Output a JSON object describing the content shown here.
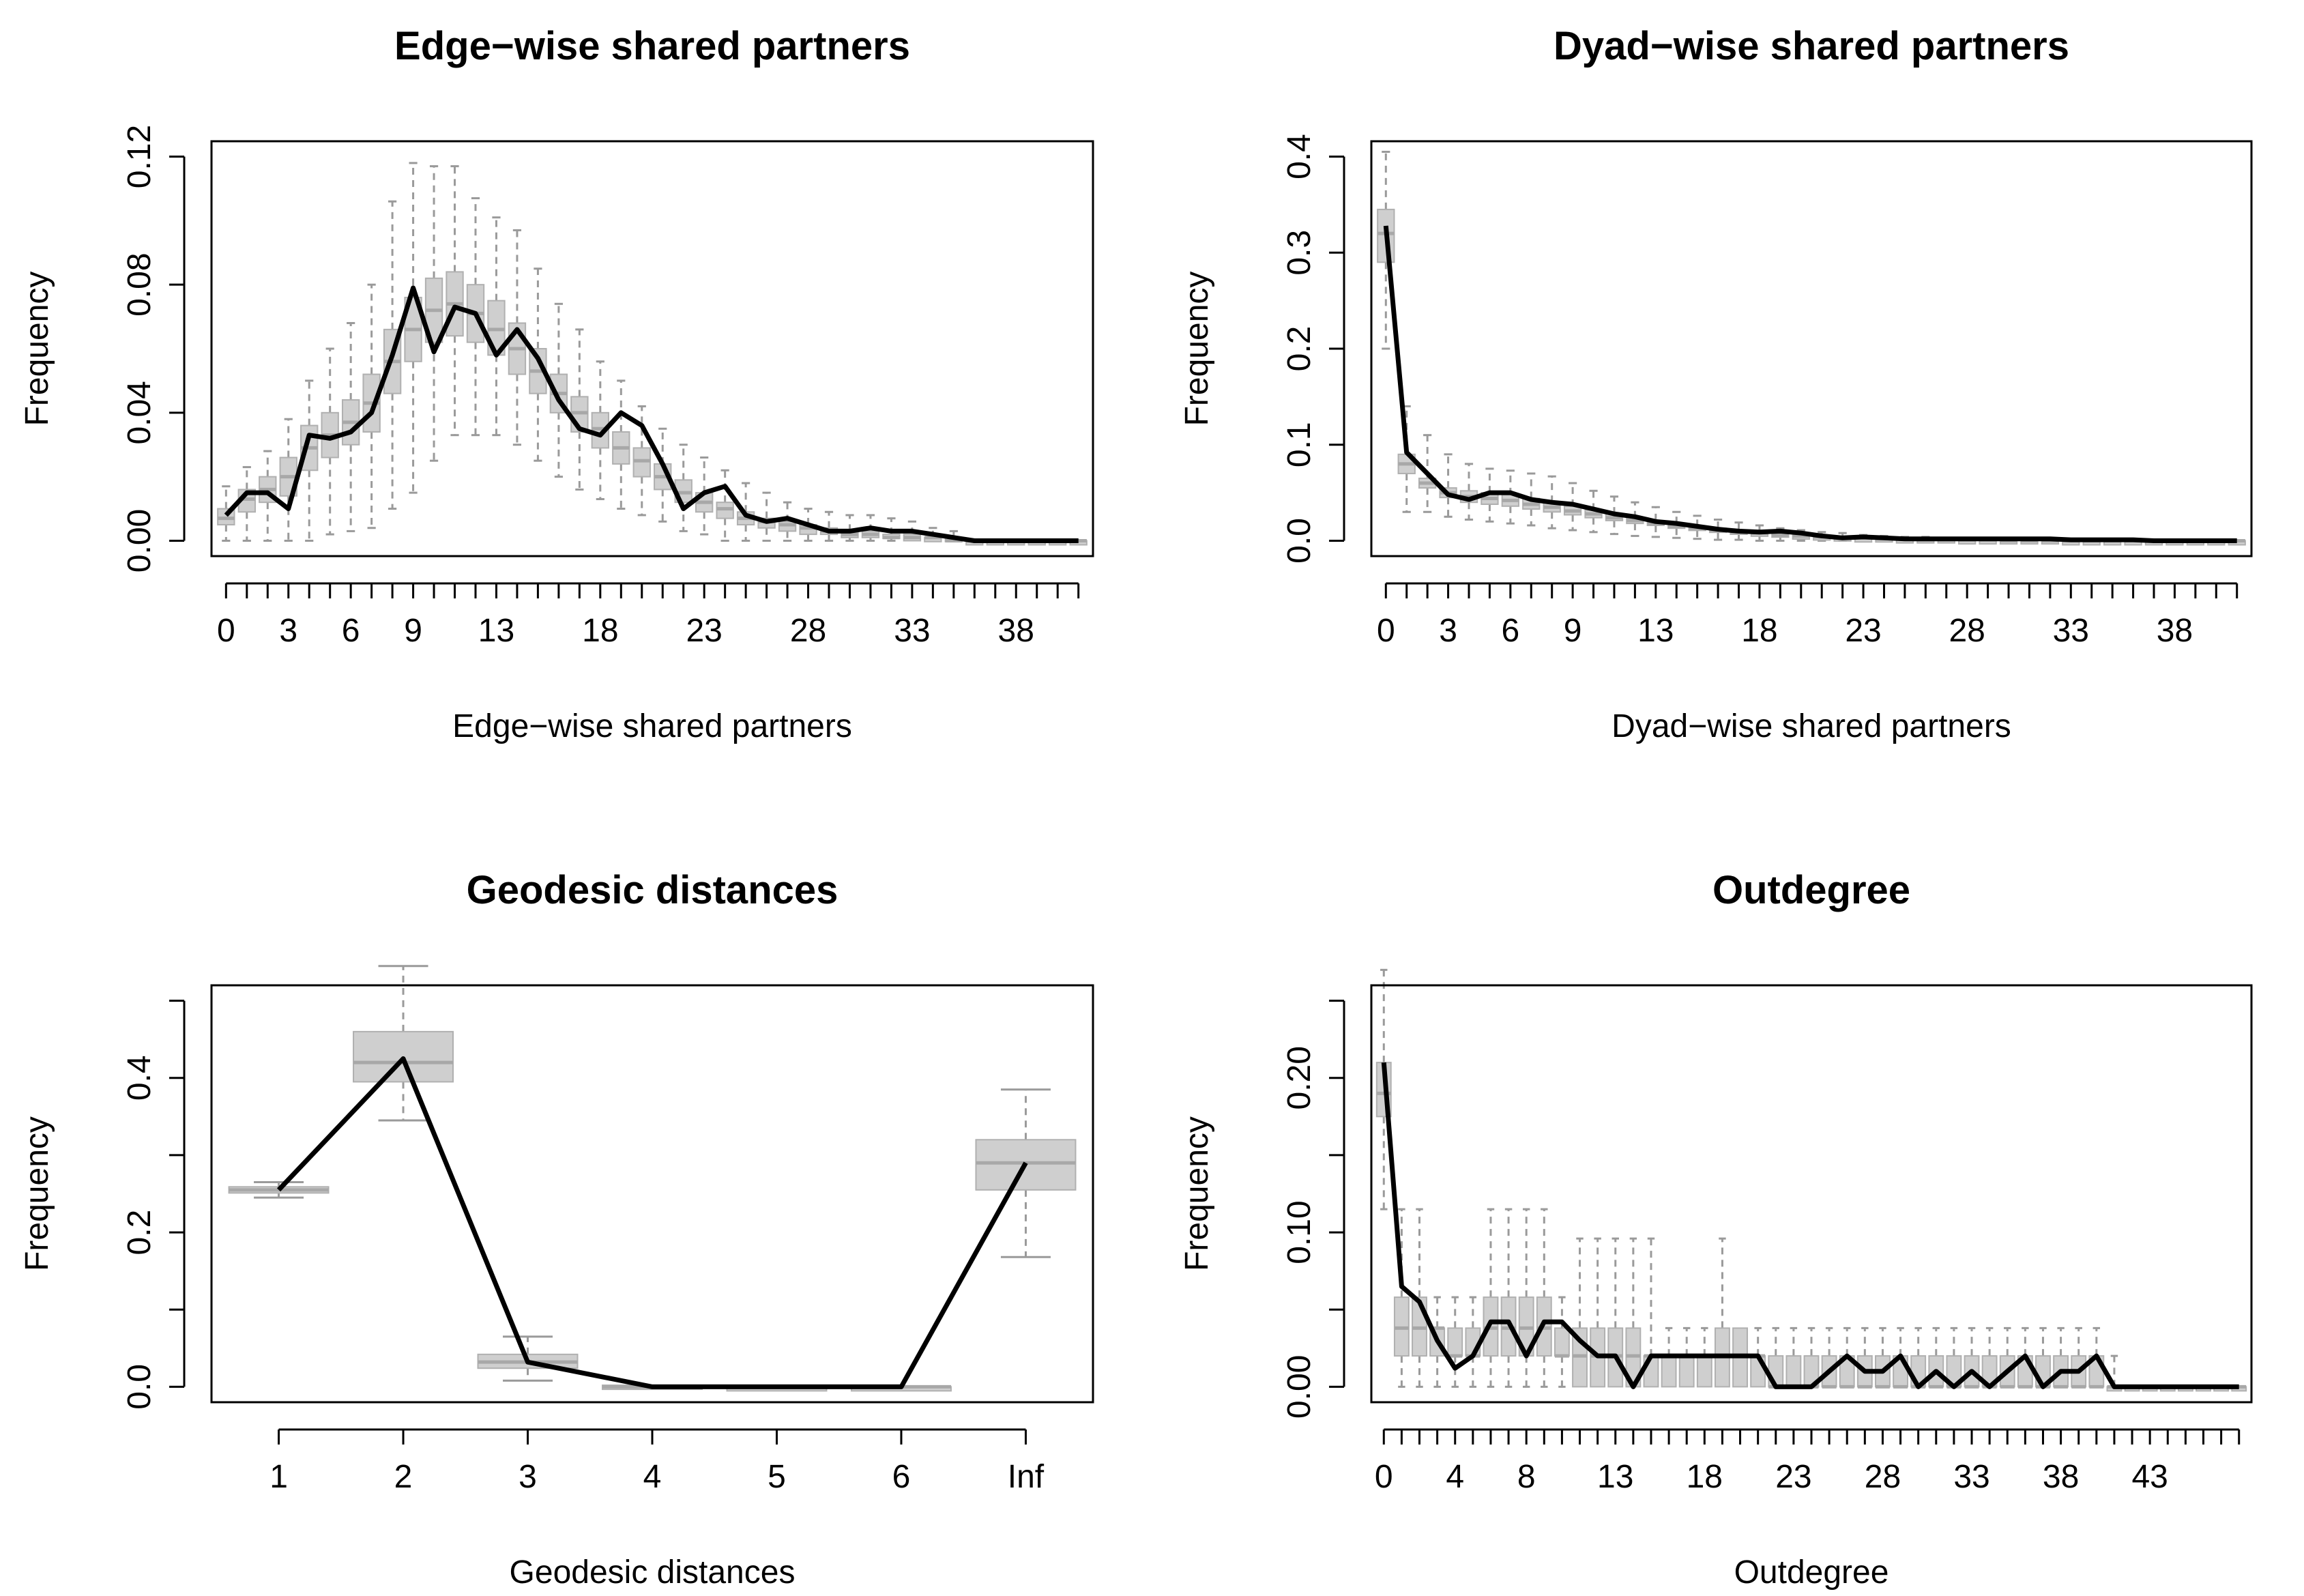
{
  "chart_data": [
    {
      "type": "box",
      "title": "Edge−wise shared partners",
      "xlabel": "Edge−wise shared partners",
      "ylabel": "Frequency",
      "ylim": [
        0,
        0.12
      ],
      "yticks": [
        0.0,
        0.04,
        0.08,
        0.12
      ],
      "ytick_labels": [
        "0.00",
        "0.04",
        "0.08",
        "0.12"
      ],
      "x": [
        0,
        1,
        2,
        3,
        4,
        5,
        6,
        7,
        8,
        9,
        10,
        11,
        12,
        13,
        14,
        15,
        16,
        17,
        18,
        19,
        20,
        21,
        22,
        23,
        24,
        25,
        26,
        27,
        28,
        29,
        30,
        31,
        32,
        33,
        34,
        35,
        36,
        37,
        38,
        39,
        40,
        41
      ],
      "xtick_labels": [
        "0",
        "3",
        "6",
        "9",
        "13",
        "18",
        "23",
        "28",
        "33",
        "38"
      ],
      "observed": [
        0.008,
        0.015,
        0.015,
        0.01,
        0.033,
        0.032,
        0.034,
        0.04,
        0.058,
        0.079,
        0.059,
        0.073,
        0.071,
        0.058,
        0.066,
        0.057,
        0.044,
        0.035,
        0.033,
        0.04,
        0.036,
        0.024,
        0.01,
        0.015,
        0.017,
        0.008,
        0.006,
        0.007,
        0.005,
        0.003,
        0.003,
        0.004,
        0.003,
        0.003,
        0.002,
        0.001,
        0.0,
        0.0,
        0.0,
        0.0,
        0.0,
        0.0
      ],
      "box_q1": [
        0.005,
        0.009,
        0.012,
        0.014,
        0.022,
        0.026,
        0.03,
        0.034,
        0.046,
        0.056,
        0.062,
        0.064,
        0.062,
        0.058,
        0.052,
        0.046,
        0.04,
        0.034,
        0.029,
        0.024,
        0.02,
        0.016,
        0.012,
        0.009,
        0.007,
        0.005,
        0.004,
        0.003,
        0.002,
        0.002,
        0.001,
        0.001,
        0.001,
        0.0,
        0.0,
        0.0,
        0.0,
        0.0,
        0.0,
        0.0,
        0.0,
        0.0
      ],
      "box_q3": [
        0.01,
        0.016,
        0.02,
        0.026,
        0.036,
        0.04,
        0.044,
        0.052,
        0.066,
        0.076,
        0.082,
        0.084,
        0.08,
        0.075,
        0.068,
        0.06,
        0.052,
        0.045,
        0.04,
        0.034,
        0.029,
        0.024,
        0.019,
        0.015,
        0.012,
        0.009,
        0.007,
        0.006,
        0.005,
        0.004,
        0.003,
        0.003,
        0.002,
        0.002,
        0.001,
        0.001,
        0.0,
        0.0,
        0.0,
        0.0,
        0.0,
        0.0
      ],
      "box_median": [
        0.007,
        0.013,
        0.016,
        0.02,
        0.029,
        0.033,
        0.037,
        0.043,
        0.056,
        0.066,
        0.072,
        0.074,
        0.071,
        0.066,
        0.06,
        0.053,
        0.046,
        0.04,
        0.035,
        0.029,
        0.025,
        0.02,
        0.015,
        0.012,
        0.01,
        0.007,
        0.006,
        0.005,
        0.004,
        0.003,
        0.002,
        0.002,
        0.001,
        0.001,
        0.001,
        0.0,
        0.0,
        0.0,
        0.0,
        0.0,
        0.0,
        0.0
      ],
      "whisker_low": [
        0.0,
        0.0,
        0.0,
        0.0,
        0.0,
        0.002,
        0.003,
        0.004,
        0.01,
        0.015,
        0.025,
        0.033,
        0.033,
        0.033,
        0.03,
        0.025,
        0.02,
        0.016,
        0.013,
        0.01,
        0.008,
        0.006,
        0.003,
        0.002,
        0.0,
        0.0,
        0.0,
        0.0,
        0.0,
        0.0,
        0.0,
        0.0,
        0.0,
        0.0,
        0.0,
        0.0,
        0.0,
        0.0,
        0.0,
        0.0,
        0.0,
        0.0
      ],
      "whisker_high": [
        0.017,
        0.023,
        0.028,
        0.038,
        0.05,
        0.06,
        0.068,
        0.08,
        0.106,
        0.118,
        0.117,
        0.117,
        0.107,
        0.101,
        0.097,
        0.085,
        0.074,
        0.066,
        0.056,
        0.05,
        0.042,
        0.035,
        0.03,
        0.026,
        0.022,
        0.018,
        0.015,
        0.012,
        0.01,
        0.009,
        0.008,
        0.008,
        0.007,
        0.006,
        0.004,
        0.003,
        0.0,
        0.0,
        0.0,
        0.0,
        0.0,
        0.0
      ]
    },
    {
      "type": "box",
      "title": "Dyad−wise shared partners",
      "xlabel": "Dyad−wise shared partners",
      "ylabel": "Frequency",
      "ylim": [
        0,
        0.4
      ],
      "yticks": [
        0.0,
        0.1,
        0.2,
        0.3,
        0.4
      ],
      "ytick_labels": [
        "0.0",
        "0.1",
        "0.2",
        "0.3",
        "0.4"
      ],
      "x": [
        0,
        1,
        2,
        3,
        4,
        5,
        6,
        7,
        8,
        9,
        10,
        11,
        12,
        13,
        14,
        15,
        16,
        17,
        18,
        19,
        20,
        21,
        22,
        23,
        24,
        25,
        26,
        27,
        28,
        29,
        30,
        31,
        32,
        33,
        34,
        35,
        36,
        37,
        38,
        39,
        40,
        41
      ],
      "xtick_labels": [
        "0",
        "3",
        "6",
        "9",
        "13",
        "18",
        "23",
        "28",
        "33",
        "38"
      ],
      "observed": [
        0.328,
        0.092,
        0.07,
        0.048,
        0.043,
        0.05,
        0.05,
        0.043,
        0.04,
        0.038,
        0.033,
        0.028,
        0.025,
        0.02,
        0.018,
        0.015,
        0.012,
        0.01,
        0.009,
        0.01,
        0.008,
        0.005,
        0.003,
        0.004,
        0.003,
        0.002,
        0.002,
        0.002,
        0.002,
        0.002,
        0.002,
        0.002,
        0.002,
        0.001,
        0.001,
        0.001,
        0.001,
        0.0,
        0.0,
        0.0,
        0.0,
        0.0
      ],
      "box_q1": [
        0.29,
        0.07,
        0.055,
        0.045,
        0.04,
        0.038,
        0.036,
        0.033,
        0.03,
        0.027,
        0.024,
        0.021,
        0.018,
        0.016,
        0.013,
        0.011,
        0.009,
        0.008,
        0.006,
        0.005,
        0.004,
        0.003,
        0.003,
        0.002,
        0.002,
        0.001,
        0.001,
        0.001,
        0.001,
        0.0,
        0.0,
        0.0,
        0.0,
        0.0,
        0.0,
        0.0,
        0.0,
        0.0,
        0.0,
        0.0,
        0.0,
        0.0
      ],
      "box_q3": [
        0.345,
        0.09,
        0.065,
        0.055,
        0.052,
        0.05,
        0.048,
        0.044,
        0.04,
        0.036,
        0.032,
        0.028,
        0.024,
        0.021,
        0.018,
        0.015,
        0.013,
        0.011,
        0.009,
        0.008,
        0.006,
        0.005,
        0.004,
        0.003,
        0.003,
        0.002,
        0.002,
        0.002,
        0.001,
        0.001,
        0.001,
        0.001,
        0.001,
        0.0,
        0.0,
        0.0,
        0.0,
        0.0,
        0.0,
        0.0,
        0.0,
        0.0
      ],
      "box_median": [
        0.32,
        0.08,
        0.06,
        0.05,
        0.046,
        0.044,
        0.042,
        0.038,
        0.035,
        0.031,
        0.028,
        0.024,
        0.021,
        0.018,
        0.015,
        0.013,
        0.011,
        0.009,
        0.008,
        0.006,
        0.005,
        0.004,
        0.003,
        0.003,
        0.002,
        0.002,
        0.001,
        0.001,
        0.001,
        0.001,
        0.0,
        0.0,
        0.0,
        0.0,
        0.0,
        0.0,
        0.0,
        0.0,
        0.0,
        0.0,
        0.0,
        0.0
      ],
      "whisker_low": [
        0.2,
        0.03,
        0.03,
        0.025,
        0.022,
        0.02,
        0.018,
        0.016,
        0.013,
        0.011,
        0.009,
        0.007,
        0.005,
        0.004,
        0.003,
        0.002,
        0.001,
        0.001,
        0.0,
        0.0,
        0.0,
        0.0,
        0.0,
        0.0,
        0.0,
        0.0,
        0.0,
        0.0,
        0.0,
        0.0,
        0.0,
        0.0,
        0.0,
        0.0,
        0.0,
        0.0,
        0.0,
        0.0,
        0.0,
        0.0,
        0.0,
        0.0
      ],
      "whisker_high": [
        0.405,
        0.14,
        0.11,
        0.09,
        0.08,
        0.075,
        0.073,
        0.07,
        0.067,
        0.06,
        0.052,
        0.046,
        0.04,
        0.035,
        0.03,
        0.026,
        0.022,
        0.019,
        0.016,
        0.013,
        0.011,
        0.009,
        0.008,
        0.006,
        0.005,
        0.004,
        0.004,
        0.003,
        0.003,
        0.002,
        0.002,
        0.002,
        0.002,
        0.001,
        0.001,
        0.001,
        0.0,
        0.0,
        0.0,
        0.0,
        0.0,
        0.0
      ]
    },
    {
      "type": "box",
      "title": "Geodesic distances",
      "xlabel": "Geodesic distances",
      "ylabel": "Frequency",
      "ylim": [
        0,
        0.5
      ],
      "yticks": [
        0.0,
        0.2,
        0.4
      ],
      "ytick_labels": [
        "0.0",
        "0.2",
        "0.4"
      ],
      "extra_ticks": [
        0.1,
        0.3,
        0.5
      ],
      "categories": [
        "1",
        "2",
        "3",
        "4",
        "5",
        "6",
        "Inf"
      ],
      "observed": [
        0.255,
        0.425,
        0.032,
        0.0,
        0.0,
        0.0,
        0.29
      ],
      "box_q1": [
        0.251,
        0.395,
        0.024,
        0.0,
        0.0,
        0.0,
        0.255
      ],
      "box_q3": [
        0.259,
        0.46,
        0.042,
        0.002,
        0.0,
        0.0,
        0.32
      ],
      "box_median": [
        0.255,
        0.42,
        0.032,
        0.0,
        0.0,
        0.0,
        0.29
      ],
      "whisker_low": [
        0.245,
        0.345,
        0.008,
        0.0,
        0.0,
        0.0,
        0.168
      ],
      "whisker_high": [
        0.265,
        0.545,
        0.065,
        0.0,
        0.0,
        0.0,
        0.385
      ]
    },
    {
      "type": "box",
      "title": "Outdegree",
      "xlabel": "Outdegree",
      "ylabel": "Frequency",
      "ylim": [
        0,
        0.25
      ],
      "yticks": [
        0.0,
        0.1,
        0.2
      ],
      "ytick_labels": [
        "0.00",
        "0.10",
        "0.20"
      ],
      "extra_ticks": [
        0.05,
        0.15,
        0.25
      ],
      "x": [
        0,
        1,
        2,
        3,
        4,
        5,
        6,
        7,
        8,
        9,
        10,
        11,
        12,
        13,
        14,
        15,
        16,
        17,
        18,
        19,
        20,
        21,
        22,
        23,
        24,
        25,
        26,
        27,
        28,
        29,
        30,
        31,
        32,
        33,
        34,
        35,
        36,
        37,
        38,
        39,
        40,
        41,
        42,
        43,
        44,
        45,
        46,
        47,
        48
      ],
      "xtick_labels": [
        "0",
        "4",
        "8",
        "13",
        "18",
        "23",
        "28",
        "33",
        "38",
        "43"
      ],
      "observed": [
        0.21,
        0.065,
        0.055,
        0.03,
        0.012,
        0.02,
        0.042,
        0.042,
        0.02,
        0.042,
        0.042,
        0.03,
        0.02,
        0.02,
        0.0,
        0.02,
        0.02,
        0.02,
        0.02,
        0.02,
        0.02,
        0.02,
        0.0,
        0.0,
        0.0,
        0.01,
        0.02,
        0.01,
        0.01,
        0.02,
        0.0,
        0.01,
        0.0,
        0.01,
        0.0,
        0.01,
        0.02,
        0.0,
        0.01,
        0.01,
        0.02,
        0.0,
        0.0,
        0.0,
        0.0,
        0.0,
        0.0,
        0.0,
        0.0
      ],
      "box_q1": [
        0.175,
        0.02,
        0.02,
        0.02,
        0.02,
        0.02,
        0.02,
        0.02,
        0.02,
        0.02,
        0.02,
        0.0,
        0.0,
        0.0,
        0.0,
        0.0,
        0.0,
        0.0,
        0.0,
        0.0,
        0.0,
        0.0,
        0.0,
        0.0,
        0.0,
        0.0,
        0.0,
        0.0,
        0.0,
        0.0,
        0.0,
        0.0,
        0.0,
        0.0,
        0.0,
        0.0,
        0.0,
        0.0,
        0.0,
        0.0,
        0.0,
        0.0,
        0.0,
        0.0,
        0.0,
        0.0,
        0.0,
        0.0,
        0.0
      ],
      "box_q3": [
        0.21,
        0.058,
        0.058,
        0.038,
        0.038,
        0.038,
        0.058,
        0.058,
        0.058,
        0.058,
        0.038,
        0.038,
        0.038,
        0.038,
        0.038,
        0.02,
        0.02,
        0.02,
        0.02,
        0.038,
        0.038,
        0.02,
        0.02,
        0.02,
        0.02,
        0.02,
        0.02,
        0.02,
        0.02,
        0.02,
        0.02,
        0.02,
        0.02,
        0.02,
        0.02,
        0.02,
        0.02,
        0.02,
        0.02,
        0.02,
        0.02,
        0.0,
        0.0,
        0.0,
        0.0,
        0.0,
        0.0,
        0.0,
        0.0
      ],
      "box_median": [
        0.19,
        0.038,
        0.038,
        0.038,
        0.02,
        0.02,
        0.038,
        0.038,
        0.038,
        0.038,
        0.02,
        0.02,
        0.02,
        0.02,
        0.02,
        0.02,
        0.02,
        0.02,
        0.02,
        0.02,
        0.02,
        0.02,
        0.0,
        0.0,
        0.0,
        0.0,
        0.0,
        0.0,
        0.0,
        0.0,
        0.0,
        0.0,
        0.0,
        0.0,
        0.0,
        0.0,
        0.0,
        0.0,
        0.0,
        0.0,
        0.0,
        0.0,
        0.0,
        0.0,
        0.0,
        0.0,
        0.0,
        0.0,
        0.0
      ],
      "whisker_low": [
        0.115,
        0.0,
        0.0,
        0.0,
        0.0,
        0.0,
        0.0,
        0.0,
        0.0,
        0.0,
        0.0,
        0.0,
        0.0,
        0.0,
        0.0,
        0.0,
        0.0,
        0.0,
        0.0,
        0.0,
        0.0,
        0.0,
        0.0,
        0.0,
        0.0,
        0.0,
        0.0,
        0.0,
        0.0,
        0.0,
        0.0,
        0.0,
        0.0,
        0.0,
        0.0,
        0.0,
        0.0,
        0.0,
        0.0,
        0.0,
        0.0,
        0.0,
        0.0,
        0.0,
        0.0,
        0.0,
        0.0,
        0.0,
        0.0
      ],
      "whisker_high": [
        0.27,
        0.115,
        0.115,
        0.058,
        0.058,
        0.058,
        0.115,
        0.115,
        0.115,
        0.115,
        0.058,
        0.096,
        0.096,
        0.096,
        0.096,
        0.096,
        0.038,
        0.038,
        0.038,
        0.096,
        0.038,
        0.038,
        0.038,
        0.038,
        0.038,
        0.038,
        0.038,
        0.038,
        0.038,
        0.038,
        0.038,
        0.038,
        0.038,
        0.038,
        0.038,
        0.038,
        0.038,
        0.038,
        0.038,
        0.038,
        0.038,
        0.02,
        0.0,
        0.0,
        0.0,
        0.0,
        0.0,
        0.0,
        0.0
      ]
    }
  ]
}
